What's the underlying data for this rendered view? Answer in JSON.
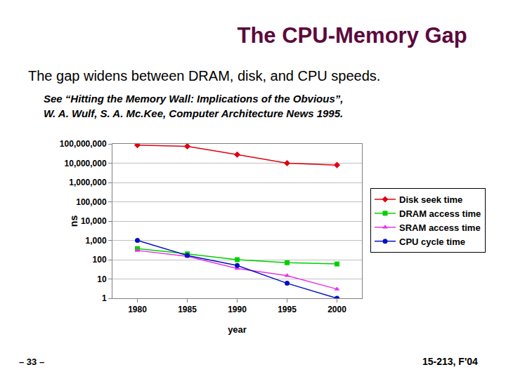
{
  "chart_data": {
    "type": "line",
    "title": "The CPU-Memory Gap",
    "subtitle": "The gap widens between DRAM, disk, and CPU speeds.",
    "annotations": [
      "See “Hitting the Memory Wall: Implications of the Obvious”,",
      "W. A. Wulf, S. A. Mc.Kee, Computer Architecture News 1995.",
      "– 33 –",
      "15-213, F'04"
    ],
    "x_label": "year",
    "y_label": "ns",
    "categories": [
      "1980",
      "1985",
      "1990",
      "1995",
      "2000"
    ],
    "series": [
      {
        "name": "Disk seek time",
        "color": "#e00010",
        "marker": "diamond",
        "line_style": "solid",
        "values": [
          87000000,
          75000000,
          28000000,
          10000000,
          8000000
        ]
      },
      {
        "name": "DRAM access time",
        "color": "#00d000",
        "marker": "square",
        "line_style": "solid",
        "values": [
          375,
          200,
          100,
          70,
          60
        ]
      },
      {
        "name": "SRAM access time",
        "color": "#e633e6",
        "marker": "triangle-up",
        "line_style": "solid",
        "values": [
          300,
          150,
          35,
          15,
          3
        ]
      },
      {
        "name": "CPU cycle time",
        "color": "#0010c0",
        "marker": "circle",
        "line_style": "solid",
        "values": [
          1000,
          166,
          50,
          6,
          1
        ]
      }
    ],
    "log": "y",
    "ylim": [
      1,
      100000000
    ],
    "yticks": [
      1,
      10,
      100,
      {
        "value": 1000,
        "label": "1,000"
      },
      {
        "value": 10000,
        "label": "10,000"
      },
      {
        "value": 100000,
        "label": "100,000"
      },
      {
        "value": 1000000,
        "label": "1,000,000"
      },
      {
        "value": 10000000,
        "label": "10,000,000"
      },
      {
        "value": 100000000,
        "label": "100,000,000"
      }
    ],
    "grid": true,
    "legend": "right"
  }
}
